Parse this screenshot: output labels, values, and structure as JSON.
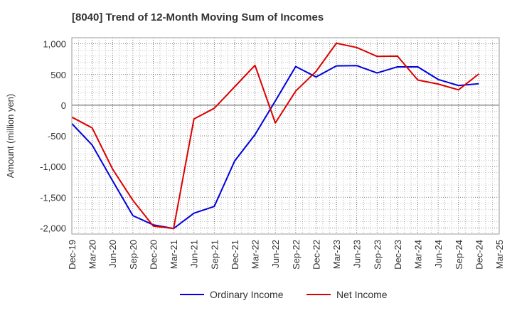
{
  "chart_data": {
    "type": "line",
    "title": "[8040]  Trend of 12-Month Moving Sum of Incomes",
    "xlabel": "",
    "ylabel": "Amount (million yen)",
    "ylim": [
      -2100,
      1100
    ],
    "yticks": [
      1000,
      500,
      0,
      -500,
      -1000,
      -1500,
      -2000
    ],
    "ytick_labels": [
      "1,000",
      "500",
      "0",
      "-500",
      "-1,000",
      "-1,500",
      "-2,000"
    ],
    "grid": true,
    "legend": "bottom-center",
    "categories": [
      "Dec-19",
      "Mar-20",
      "Jun-20",
      "Sep-20",
      "Dec-20",
      "Mar-21",
      "Jun-21",
      "Sep-21",
      "Dec-21",
      "Mar-22",
      "Jun-22",
      "Sep-22",
      "Dec-22",
      "Mar-23",
      "Jun-23",
      "Sep-23",
      "Dec-23",
      "Mar-24",
      "Jun-24",
      "Sep-24",
      "Dec-24",
      "Mar-25"
    ],
    "series": [
      {
        "name": "Ordinary Income",
        "color": "#0000dd",
        "values": [
          -300,
          -650,
          -1230,
          -1800,
          -1950,
          -2010,
          -1760,
          -1650,
          -910,
          -480,
          70,
          630,
          460,
          640,
          645,
          525,
          625,
          625,
          420,
          320,
          350,
          null
        ]
      },
      {
        "name": "Net Income",
        "color": "#dd0000",
        "values": [
          -195,
          -370,
          -1040,
          -1550,
          -1970,
          -2010,
          -225,
          -50,
          300,
          650,
          -290,
          230,
          550,
          1010,
          940,
          795,
          800,
          410,
          345,
          250,
          510,
          null
        ]
      }
    ]
  }
}
